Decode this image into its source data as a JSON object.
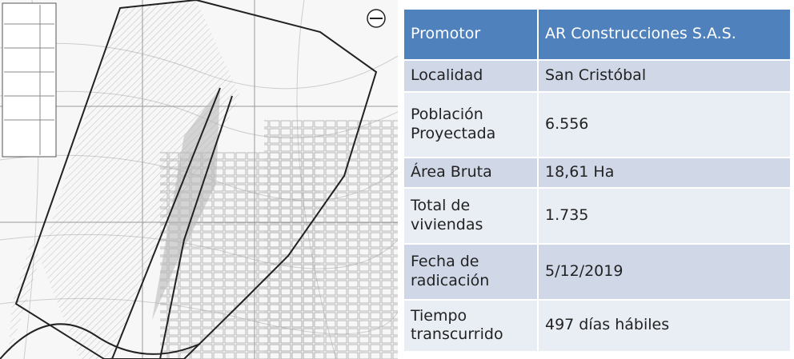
{
  "table": {
    "header": [
      "Promotor",
      "AR Construcciones S.A.S."
    ],
    "rows": [
      [
        "Localidad",
        "San Cristóbal"
      ],
      [
        "Población Proyectada",
        "6.556"
      ],
      [
        "Área Bruta",
        "18,61 Ha"
      ],
      [
        "Total de viviendas",
        "1.735"
      ],
      [
        "Fecha de radicación",
        "5/12/2019"
      ],
      [
        "Tiempo transcurrido",
        "497 días hábiles"
      ]
    ]
  }
}
